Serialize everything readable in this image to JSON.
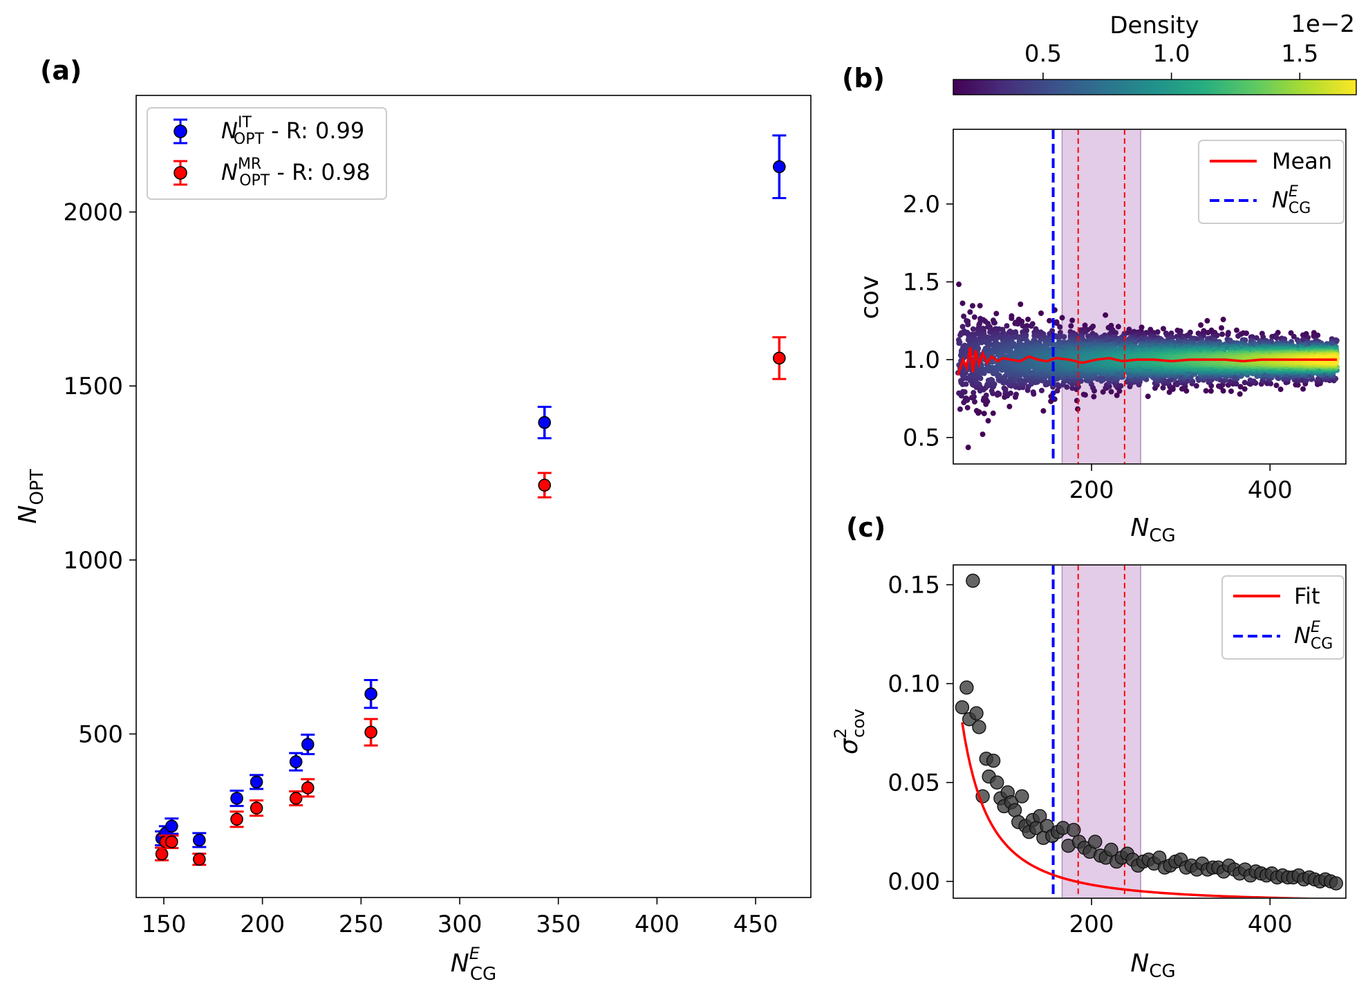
{
  "panel_labels": {
    "a": "(a)",
    "b": "(b)",
    "c": "(c)"
  },
  "chart_data": [
    {
      "id": "a",
      "type": "scatter",
      "error_bars": true,
      "xlabel_base": "N",
      "xlabel_sup": "E",
      "xlabel_sub": "CG",
      "ylabel_base": "N",
      "ylabel_sub": "OPT",
      "xlim": [
        136,
        478
      ],
      "ylim": [
        30,
        2335
      ],
      "xticks": [
        150,
        200,
        250,
        300,
        350,
        400,
        450
      ],
      "yticks": [
        500,
        1000,
        1500,
        2000
      ],
      "legend_position": "upper-left",
      "series": [
        {
          "name": "IT",
          "color": "#0000ff",
          "legend_base": "N",
          "legend_sup": "IT",
          "legend_sub": "OPT",
          "legend_rest": " - R: 0.99",
          "x": [
            149,
            151,
            154,
            168,
            187,
            197,
            217,
            223,
            255,
            343,
            462
          ],
          "y": [
            200,
            215,
            235,
            195,
            315,
            362,
            420,
            470,
            615,
            1395,
            2130
          ],
          "err": [
            20,
            20,
            22,
            20,
            22,
            20,
            25,
            28,
            40,
            45,
            90
          ]
        },
        {
          "name": "MR",
          "color": "#ff0000",
          "legend_base": "N",
          "legend_sup": "MR",
          "legend_sub": "OPT",
          "legend_rest": " - R: 0.98",
          "x": [
            149,
            151,
            154,
            168,
            187,
            197,
            217,
            223,
            255,
            343,
            462
          ],
          "y": [
            155,
            190,
            190,
            140,
            255,
            287,
            315,
            345,
            505,
            1215,
            1580
          ],
          "err": [
            18,
            18,
            18,
            16,
            22,
            22,
            20,
            25,
            38,
            35,
            60
          ]
        }
      ]
    },
    {
      "id": "b",
      "type": "scatter",
      "xlabel_base": "N",
      "xlabel_sub": "CG",
      "ylabel": "cov",
      "xlim": [
        45,
        485
      ],
      "ylim": [
        0.33,
        2.48
      ],
      "xticks": [
        200,
        400
      ],
      "yticks": [
        0.5,
        1.0,
        1.5,
        2.0
      ],
      "ytick_labels": [
        "0.5",
        "1.0",
        "1.5",
        "2.0"
      ],
      "legend_position": "upper-right",
      "mean_label": "Mean",
      "nce_label_base": "N",
      "nce_label_sup": "E",
      "nce_label_sub": "CG",
      "vline_x": 157,
      "band": [
        167,
        255
      ],
      "band_lines": [
        185,
        237
      ],
      "mean_line": {
        "x": [
          50,
          56,
          60,
          64,
          67,
          70,
          74,
          78,
          83,
          88,
          95,
          100,
          110,
          120,
          130,
          140,
          150,
          160,
          175,
          190,
          205,
          220,
          235,
          250,
          270,
          290,
          310,
          330,
          350,
          370,
          390,
          410,
          430,
          450,
          475
        ],
        "y": [
          0.9,
          1.0,
          0.95,
          1.08,
          0.92,
          1.06,
          0.97,
          1.04,
          0.98,
          1.02,
          0.99,
          1.01,
          1.0,
          0.99,
          1.02,
          1.0,
          0.99,
          1.01,
          1.0,
          0.98,
          1.0,
          1.01,
          0.99,
          1.0,
          1.0,
          0.99,
          1.0,
          1.0,
          1.0,
          0.99,
          1.0,
          1.0,
          1.0,
          1.0,
          1.0
        ]
      },
      "colorbar": {
        "title": "Density",
        "exponent_label": "1e−2",
        "range": [
          0.15,
          1.72
        ],
        "ticks": [
          0.5,
          1.0,
          1.5
        ],
        "tick_labels": [
          "0.5",
          "1.0",
          "1.5"
        ],
        "colormap": "viridis"
      },
      "scatter_model": {
        "x_range": [
          50,
          475
        ],
        "mean": 1.0,
        "spread_at_50": 0.3,
        "spread_decay": 0.5,
        "n_points": 5000
      }
    },
    {
      "id": "c",
      "type": "scatter",
      "xlabel_base": "N",
      "xlabel_sub": "CG",
      "ylabel_base": "σ",
      "ylabel_sup": "2",
      "ylabel_sub": "cov",
      "xlim": [
        45,
        485
      ],
      "ylim": [
        -0.0085,
        0.16
      ],
      "xticks": [
        200,
        400
      ],
      "yticks": [
        0.0,
        0.05,
        0.1,
        0.15
      ],
      "ytick_labels": [
        "0.00",
        "0.05",
        "0.10",
        "0.15"
      ],
      "legend_position": "upper-right",
      "fit_label": "Fit",
      "nce_label_base": "N",
      "nce_label_sup": "E",
      "nce_label_sub": "CG",
      "vline_x": 157,
      "band": [
        167,
        255
      ],
      "band_lines": [
        185,
        237
      ],
      "fit": {
        "form": "a*x^-b + c",
        "a": 110,
        "b": 1.77,
        "c": -0.011,
        "x_range": [
          55,
          475
        ]
      },
      "points": {
        "x": [
          55,
          60,
          63,
          67,
          71,
          74,
          78,
          82,
          85,
          90,
          94,
          98,
          102,
          106,
          110,
          114,
          118,
          122,
          126,
          130,
          134,
          138,
          142,
          146,
          150,
          156,
          162,
          168,
          174,
          180,
          186,
          192,
          198,
          204,
          210,
          216,
          222,
          228,
          234,
          240,
          246,
          252,
          258,
          264,
          270,
          276,
          282,
          288,
          294,
          300,
          306,
          312,
          318,
          324,
          330,
          336,
          342,
          348,
          354,
          360,
          366,
          372,
          378,
          384,
          390,
          396,
          402,
          408,
          414,
          420,
          426,
          432,
          438,
          444,
          450,
          456,
          462,
          468,
          474
        ],
        "y": [
          0.088,
          0.098,
          0.082,
          0.152,
          0.085,
          0.078,
          0.043,
          0.062,
          0.053,
          0.061,
          0.05,
          0.042,
          0.038,
          0.045,
          0.04,
          0.036,
          0.03,
          0.043,
          0.028,
          0.025,
          0.031,
          0.027,
          0.033,
          0.022,
          0.028,
          0.023,
          0.025,
          0.027,
          0.018,
          0.026,
          0.02,
          0.017,
          0.015,
          0.02,
          0.013,
          0.012,
          0.016,
          0.01,
          0.012,
          0.014,
          0.011,
          0.008,
          0.01,
          0.011,
          0.009,
          0.012,
          0.007,
          0.008,
          0.01,
          0.011,
          0.007,
          0.008,
          0.006,
          0.009,
          0.006,
          0.007,
          0.007,
          0.005,
          0.008,
          0.006,
          0.004,
          0.006,
          0.003,
          0.005,
          0.004,
          0.003,
          0.004,
          0.002,
          0.003,
          0.002,
          0.002,
          0.003,
          0.001,
          0.002,
          0.001,
          0.0,
          0.001,
          0.0,
          -0.001
        ]
      }
    }
  ]
}
